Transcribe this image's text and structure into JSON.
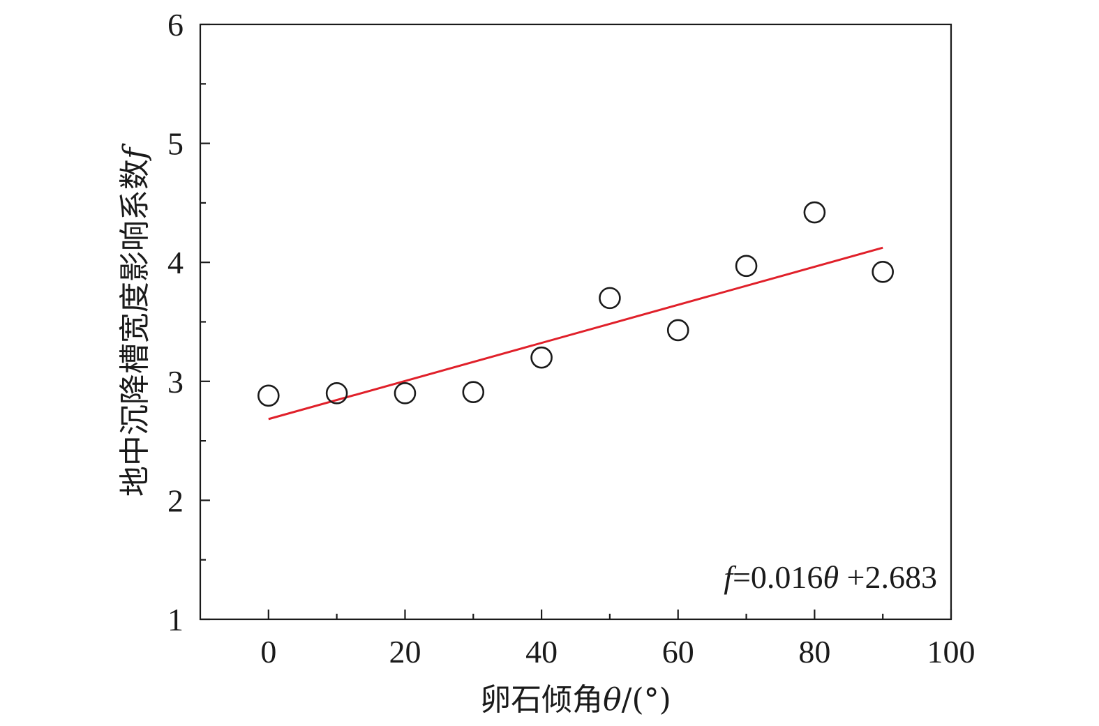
{
  "chart_data": {
    "type": "scatter",
    "x_axis": {
      "range": [
        -10,
        100
      ],
      "major_ticks": [
        0,
        20,
        40,
        60,
        80,
        100
      ],
      "minor_ticks": [
        10,
        30,
        50,
        70,
        90
      ],
      "label_prefix": "卵石倾角",
      "label_symbol": "θ",
      "label_suffix": "/(°)"
    },
    "y_axis": {
      "range": [
        1,
        6
      ],
      "major_ticks": [
        1,
        2,
        3,
        4,
        5,
        6
      ],
      "minor_ticks": [
        1.5,
        2.5,
        3.5,
        4.5,
        5.5
      ],
      "label_prefix": "地中沉降槽宽度影响系数",
      "label_symbol": "f"
    },
    "points": [
      {
        "x": 0,
        "y": 2.88
      },
      {
        "x": 10,
        "y": 2.9
      },
      {
        "x": 20,
        "y": 2.9
      },
      {
        "x": 30,
        "y": 2.91
      },
      {
        "x": 40,
        "y": 3.2
      },
      {
        "x": 50,
        "y": 3.7
      },
      {
        "x": 60,
        "y": 3.43
      },
      {
        "x": 70,
        "y": 3.97
      },
      {
        "x": 80,
        "y": 4.42
      },
      {
        "x": 90,
        "y": 3.92
      }
    ],
    "fit": {
      "slope": 0.016,
      "intercept": 2.683,
      "x_range": [
        0,
        90
      ],
      "color": "#e0202a",
      "equation": {
        "lhs": "f",
        "middle": "=0.016",
        "var": "θ",
        "rhs": " +2.683"
      }
    },
    "grid": false,
    "legend": "none"
  }
}
